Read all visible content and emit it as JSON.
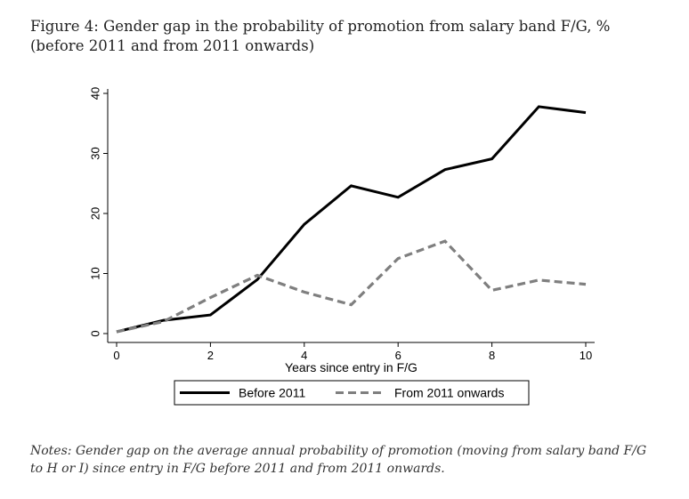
{
  "figure": {
    "title": "Figure 4: Gender gap in the probability of promotion from salary band F/G, % (before 2011 and from 2011 onwards)",
    "notes": "Notes: Gender gap on the average annual probability of promotion (moving from salary band F/G to H or I) since entry in F/G before 2011 and from 2011 onwards."
  },
  "chart_data": {
    "type": "line",
    "title": "",
    "xlabel": "Years since entry in F/G",
    "ylabel": "",
    "xlim": [
      0,
      10
    ],
    "ylim": [
      0,
      40
    ],
    "xticks": [
      0,
      2,
      4,
      6,
      8,
      10
    ],
    "yticks": [
      0,
      10,
      20,
      30,
      40
    ],
    "grid": false,
    "legend_position": "bottom",
    "x": [
      0,
      1,
      2,
      3,
      4,
      5,
      6,
      7,
      8,
      9,
      10
    ],
    "series": [
      {
        "name": "Before 2011",
        "style": "solid",
        "color": "#000000",
        "values": [
          0.3,
          2.2,
          3.1,
          9.0,
          18.2,
          24.6,
          22.7,
          27.3,
          29.1,
          37.8,
          36.8
        ]
      },
      {
        "name": "From 2011 onwards",
        "style": "dashed",
        "color": "#7f7f7f",
        "values": [
          0.3,
          2.0,
          6.0,
          9.7,
          6.9,
          4.8,
          12.5,
          15.4,
          7.2,
          8.9,
          8.2
        ]
      }
    ]
  }
}
